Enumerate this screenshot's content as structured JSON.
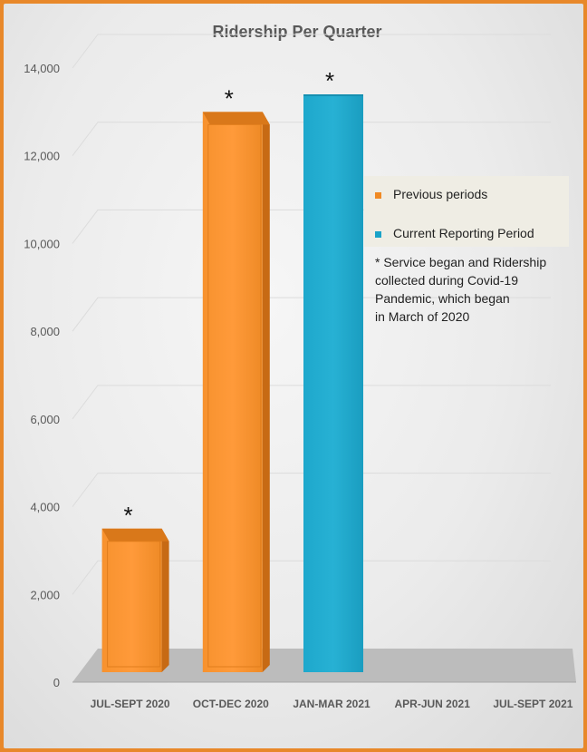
{
  "chart_data": {
    "type": "bar",
    "title": "Ridership Per Quarter",
    "categories": [
      "JUL-SEPT 2020",
      "OCT-DEC 2020",
      "JAN-MAR 2021",
      "APR-JUN 2021",
      "JUL-SEPT 2021"
    ],
    "values": [
      2900,
      12400,
      12800,
      null,
      null
    ],
    "bar_kinds": [
      "previous",
      "previous",
      "current",
      null,
      null
    ],
    "asterisks": [
      true,
      true,
      true,
      false,
      false
    ],
    "ylim": [
      0,
      14000
    ],
    "yticks": [
      0,
      2000,
      4000,
      6000,
      8000,
      10000,
      12000,
      14000
    ],
    "ytick_labels": [
      "0",
      "2,000",
      "4,000",
      "6,000",
      "8,000",
      "10,000",
      "12,000",
      "14,000"
    ],
    "grid": true,
    "legend": {
      "placement": "right",
      "items": [
        {
          "label": "Previous periods",
          "color": "#f08a24"
        },
        {
          "label": "Current Reporting Period",
          "color": "#1aa3c8"
        }
      ]
    },
    "asterisk_symbol": "*",
    "note_lines": [
      "* Service began and Ridership",
      "collected during Covid-19",
      "Pandemic, which began",
      "in March of 2020"
    ]
  },
  "colors": {
    "previous": "#f08a24",
    "current": "#1aa3c8",
    "frame": "#e8882a"
  }
}
